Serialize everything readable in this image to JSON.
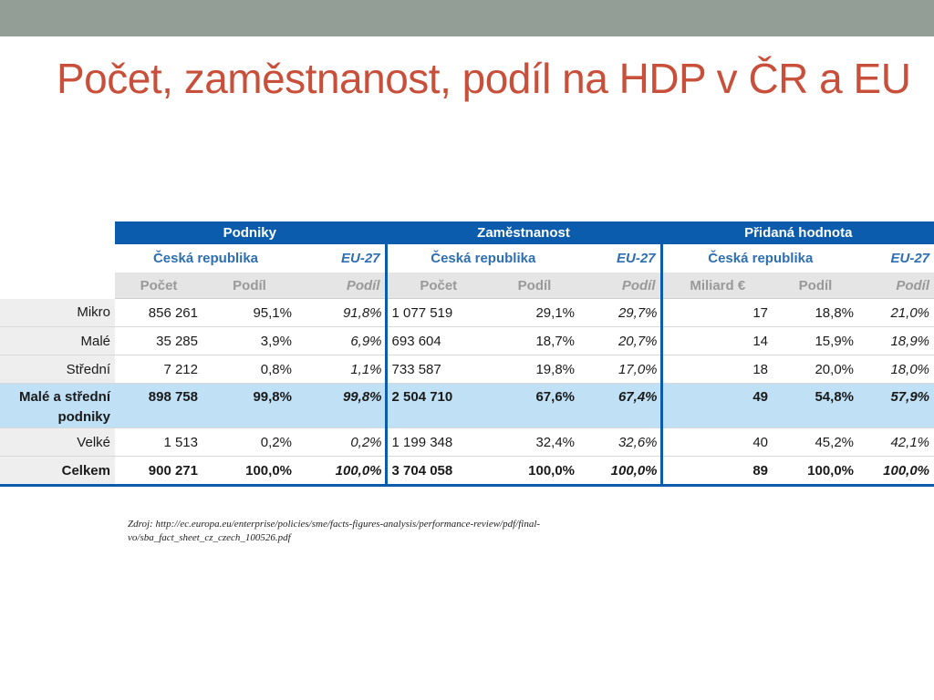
{
  "title": "Počet, zaměstnanost, podíl na HDP v ČR a EU",
  "table": {
    "groups": [
      "Podniky",
      "Zaměstnanost",
      "Přidaná hodnota"
    ],
    "region_cr": "Česká republika",
    "region_eu": "EU-27",
    "subheaders": [
      "Počet",
      "Podíl",
      "Podíl",
      "Počet",
      "Podíl",
      "Podíl",
      "Miliard €",
      "Podíl",
      "Podíl"
    ],
    "rows": [
      {
        "label": "Mikro",
        "cells": [
          "856 261",
          "95,1%",
          "91,8%",
          "1 077 519",
          "29,1%",
          "29,7%",
          "17",
          "18,8%",
          "21,0%"
        ]
      },
      {
        "label": "Malé",
        "cells": [
          "35 285",
          "3,9%",
          "6,9%",
          "693 604",
          "18,7%",
          "20,7%",
          "14",
          "15,9%",
          "18,9%"
        ]
      },
      {
        "label": "Střední",
        "cells": [
          "7 212",
          "0,8%",
          "1,1%",
          "733 587",
          "19,8%",
          "17,0%",
          "18",
          "20,0%",
          "18,0%"
        ]
      },
      {
        "label": "Malé a střední podniky",
        "cells": [
          "898 758",
          "99,8%",
          "99,8%",
          "2 504 710",
          "67,6%",
          "67,4%",
          "49",
          "54,8%",
          "57,9%"
        ]
      },
      {
        "label": "Velké",
        "cells": [
          "1 513",
          "0,2%",
          "0,2%",
          "1 199 348",
          "32,4%",
          "32,6%",
          "40",
          "45,2%",
          "42,1%"
        ]
      },
      {
        "label": "Celkem",
        "cells": [
          "900 271",
          "100,0%",
          "100,0%",
          "3 704 058",
          "100,0%",
          "100,0%",
          "89",
          "100,0%",
          "100,0%"
        ]
      }
    ]
  },
  "source": "Zdroj: http://ec.europa.eu/enterprise/policies/sme/facts-figures-analysis/performance-review/pdf/final-vo/sba_fact_sheet_cz_czech_100526.pdf"
}
